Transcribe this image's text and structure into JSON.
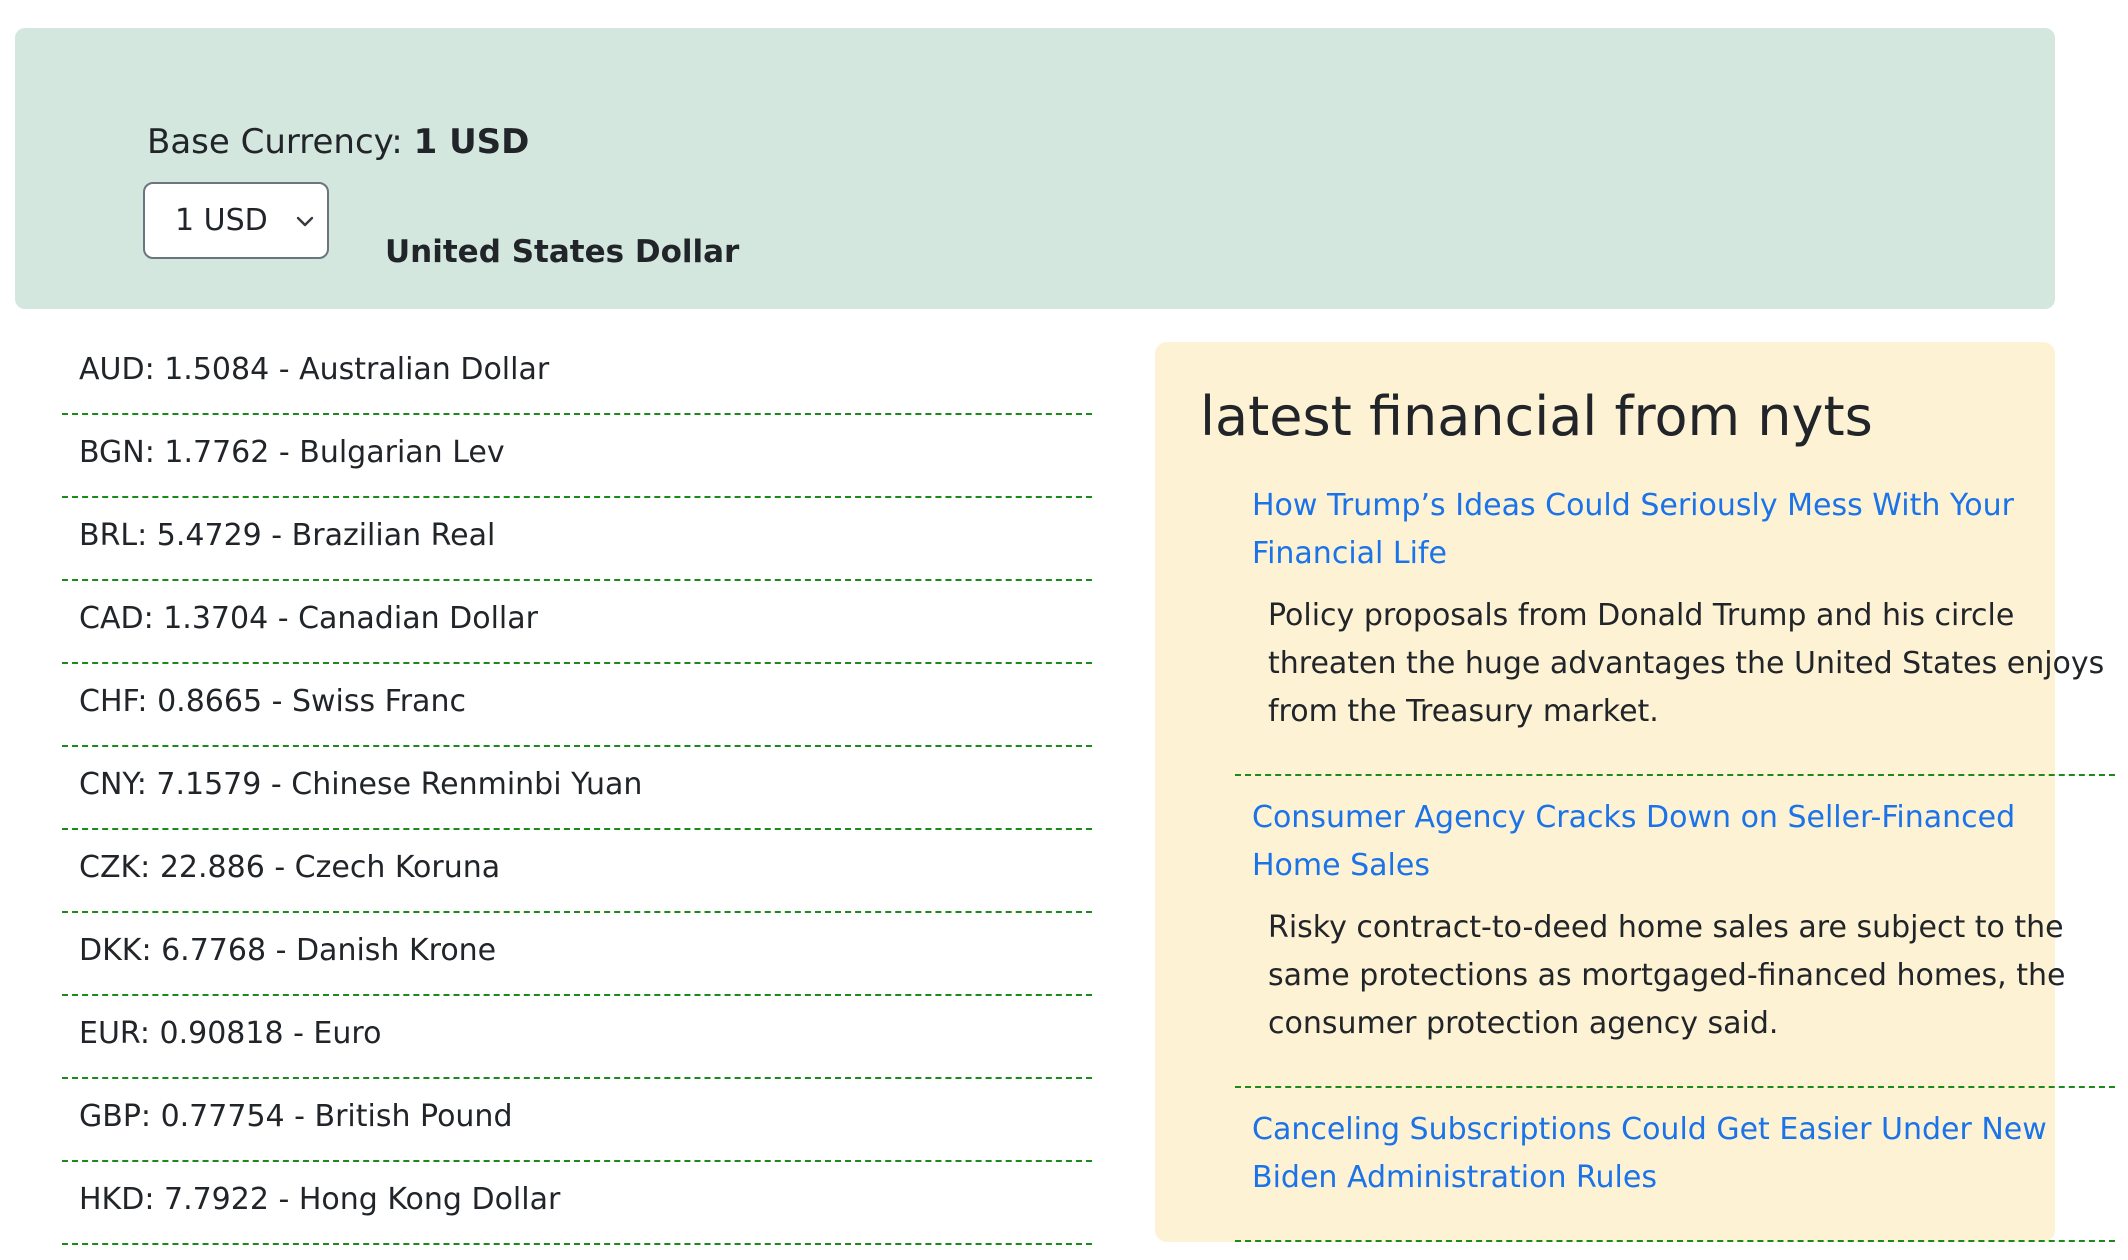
{
  "base": {
    "label": "Base Currency:",
    "value": "1 USD"
  },
  "selector": {
    "selected": "1 USD",
    "currency_name": "United States Dollar"
  },
  "rates": [
    "AUD: 1.5084 - Australian Dollar",
    "BGN: 1.7762 - Bulgarian Lev",
    "BRL: 5.4729 - Brazilian Real",
    "CAD: 1.3704 - Canadian Dollar",
    "CHF: 0.8665 - Swiss Franc",
    "CNY: 7.1579 - Chinese Renminbi Yuan",
    "CZK: 22.886 - Czech Koruna",
    "DKK: 6.7768 - Danish Krone",
    "EUR: 0.90818 - Euro",
    "GBP: 0.77754 - British Pound",
    "HKD: 7.7922 - Hong Kong Dollar"
  ],
  "news": {
    "title": "latest financial from nyts",
    "articles": [
      {
        "headline": "How Trump’s Ideas Could Seriously Mess With Your Financial Life",
        "abstract": "Policy proposals from Donald Trump and his circle threaten the huge advantages the United States enjoys from the Treasury market."
      },
      {
        "headline": "Consumer Agency Cracks Down on Seller-Financed Home Sales",
        "abstract": "Risky contract-to-deed home sales are subject to the same protections as mortgaged-financed homes, the consumer protection agency said."
      },
      {
        "headline": "Canceling Subscriptions Could Get Easier Under New Biden Administration Rules",
        "abstract": ""
      }
    ]
  },
  "colors": {
    "header_bg": "#d3e7de",
    "news_bg": "#fef2d4",
    "link": "#1a73e8",
    "divider": "#1a8a1a"
  },
  "icons": {
    "select_arrow": "chevron-down-icon"
  }
}
